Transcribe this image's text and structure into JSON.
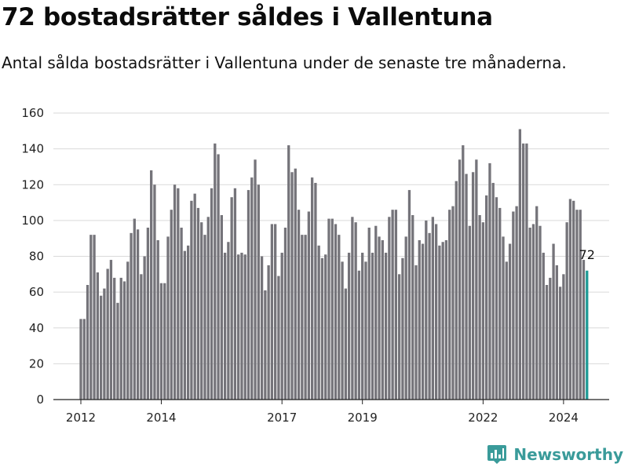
{
  "title": "72 bostadsrätter såldes i Vallentuna",
  "subtitle": "Antal sålda bostadsrätter i Vallentuna under de senaste tre månaderna.",
  "brand": "Newsworthy",
  "colors": {
    "bar": "#75747a",
    "highlight": "#1f9b96",
    "brand": "#3a9b9a"
  },
  "chart_data": {
    "type": "bar",
    "title": "72 bostadsrätter såldes i Vallentuna",
    "xlabel": "",
    "ylabel": "",
    "ylim": [
      0,
      160
    ],
    "y_ticks": [
      0,
      20,
      40,
      60,
      80,
      100,
      120,
      140,
      160
    ],
    "x_tick_labels": [
      "2012",
      "2014",
      "2017",
      "2019",
      "2022",
      "2024"
    ],
    "x_tick_bar_index": [
      0,
      24,
      60,
      84,
      120,
      144
    ],
    "highlight_label": "72",
    "grid": true,
    "values": [
      45,
      45,
      64,
      92,
      92,
      71,
      58,
      62,
      73,
      78,
      68,
      54,
      68,
      66,
      77,
      93,
      101,
      95,
      70,
      80,
      96,
      128,
      120,
      89,
      65,
      65,
      91,
      106,
      120,
      118,
      96,
      83,
      86,
      111,
      115,
      107,
      99,
      92,
      102,
      118,
      143,
      137,
      103,
      82,
      88,
      113,
      118,
      81,
      82,
      81,
      117,
      124,
      134,
      120,
      80,
      61,
      75,
      98,
      98,
      69,
      82,
      96,
      142,
      127,
      129,
      106,
      92,
      92,
      105,
      124,
      121,
      86,
      79,
      81,
      101,
      101,
      98,
      92,
      77,
      62,
      82,
      102,
      99,
      72,
      82,
      77,
      96,
      82,
      97,
      91,
      89,
      82,
      102,
      106,
      106,
      70,
      79,
      91,
      117,
      103,
      75,
      89,
      87,
      100,
      93,
      102,
      98,
      86,
      88,
      89,
      106,
      108,
      122,
      134,
      142,
      126,
      97,
      127,
      134,
      103,
      99,
      114,
      132,
      121,
      113,
      107,
      91,
      77,
      87,
      105,
      108,
      151,
      143,
      143,
      96,
      98,
      108,
      97,
      82,
      64,
      68,
      87,
      75,
      63,
      70,
      99,
      112,
      111,
      106,
      106,
      78,
      72
    ]
  }
}
